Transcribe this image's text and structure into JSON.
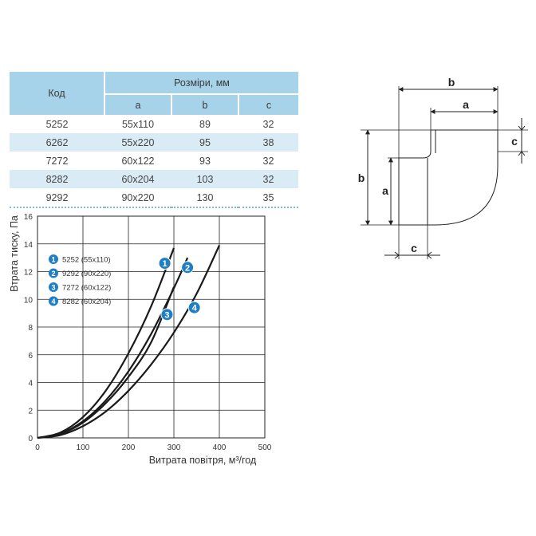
{
  "table": {
    "header_code": "Код",
    "header_dims": "Розміри, мм",
    "sub_a": "a",
    "sub_b": "b",
    "sub_c": "c",
    "rows": [
      {
        "code": "5252",
        "a": "55x110",
        "b": "89",
        "c": "32"
      },
      {
        "code": "6262",
        "a": "55x220",
        "b": "95",
        "c": "38"
      },
      {
        "code": "7272",
        "a": "60x122",
        "b": "93",
        "c": "32"
      },
      {
        "code": "8282",
        "a": "60x204",
        "b": "103",
        "c": "32"
      },
      {
        "code": "9292",
        "a": "90x220",
        "b": "130",
        "c": "35"
      }
    ]
  },
  "diagram": {
    "label_b_top": "b",
    "label_a_top": "a",
    "label_c_right": "c",
    "label_b_left": "b",
    "label_a_left": "a",
    "label_c_bottom": "c"
  },
  "colors": {
    "table_header": "#a7d3ea",
    "table_shade": "#d9ecf6",
    "badge": "#1f7fc4",
    "curve": "#1a1a1a"
  },
  "chart_data": {
    "type": "line",
    "xlabel": "Витрата повітря, м³/год",
    "ylabel": "Втрата тиску, Па",
    "xlim": [
      0,
      500
    ],
    "ylim": [
      0,
      16
    ],
    "xticks": [
      "0",
      "100",
      "200",
      "300",
      "400",
      "500"
    ],
    "yticks": [
      "0",
      "2",
      "4",
      "6",
      "8",
      "10",
      "12",
      "14",
      "16"
    ],
    "grid": true,
    "legend_placement": "upper-left",
    "series": [
      {
        "name": "5252 (55x110)",
        "badge": "1",
        "x": [
          0,
          50,
          100,
          150,
          200,
          250,
          300
        ],
        "y": [
          0,
          0.38,
          1.5,
          3.4,
          6.1,
          9.5,
          13.7
        ]
      },
      {
        "name": "9292 (90x220)",
        "badge": "2",
        "x": [
          0,
          50,
          100,
          150,
          200,
          250,
          300,
          330
        ],
        "y": [
          0,
          0.3,
          1.2,
          2.7,
          4.8,
          7.5,
          10.8,
          13.0
        ]
      },
      {
        "name": "7272 (60x122)",
        "badge": "3",
        "x": [
          0,
          50,
          100,
          150,
          200,
          250,
          300
        ],
        "y": [
          0,
          0.28,
          1.1,
          2.5,
          4.4,
          6.9,
          10.9
        ]
      },
      {
        "name": "8282 (60x204)",
        "badge": "4",
        "x": [
          0,
          50,
          100,
          150,
          200,
          250,
          300,
          350,
          400
        ],
        "y": [
          0,
          0.2,
          0.85,
          1.9,
          3.4,
          5.3,
          7.6,
          10.4,
          13.9
        ]
      }
    ]
  }
}
